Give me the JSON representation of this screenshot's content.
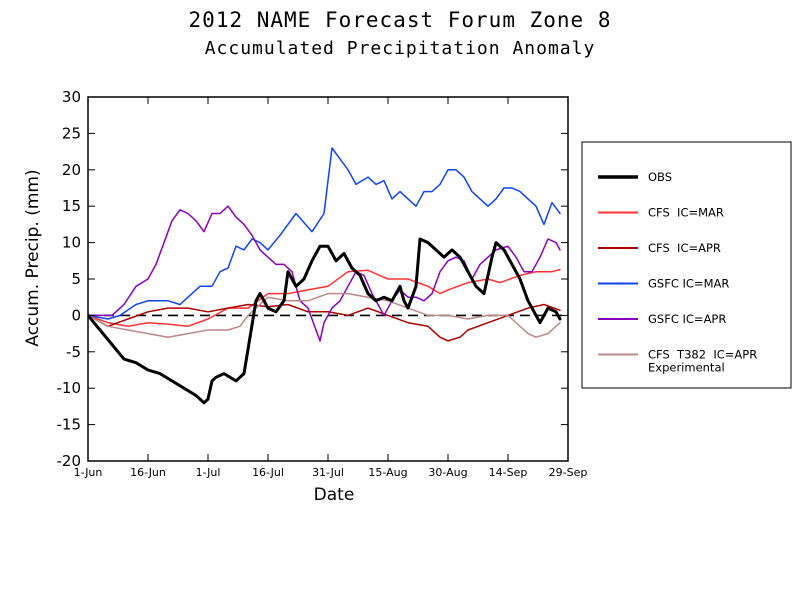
{
  "chart_data": {
    "type": "line",
    "title": "2012 NAME Forecast Forum Zone 8",
    "subtitle": "Accumulated Precipitation Anomaly",
    "xlabel": "Date",
    "ylabel": "Accum. Precip. (mm)",
    "ylim": [
      -20,
      30
    ],
    "yticks": [
      -20,
      -15,
      -10,
      -5,
      0,
      5,
      10,
      15,
      20,
      25,
      30
    ],
    "xlim": [
      0,
      120
    ],
    "x_unit": "days since 1-Jun-2012",
    "xticks": [
      {
        "day": 0,
        "label": "1-Jun"
      },
      {
        "day": 15,
        "label": "16-Jun"
      },
      {
        "day": 30,
        "label": "1-Jul"
      },
      {
        "day": 45,
        "label": "16-Jul"
      },
      {
        "day": 60,
        "label": "31-Jul"
      },
      {
        "day": 75,
        "label": "15-Aug"
      },
      {
        "day": 90,
        "label": "30-Aug"
      },
      {
        "day": 105,
        "label": "14-Sep"
      },
      {
        "day": 120,
        "label": "29-Sep"
      }
    ],
    "zero_line": {
      "style": "dashed",
      "color": "#000000"
    },
    "legend_position": "right",
    "series": [
      {
        "name": "OBS",
        "color": "#000000",
        "width": 3,
        "points": [
          [
            0,
            0
          ],
          [
            3,
            -2
          ],
          [
            6,
            -4
          ],
          [
            9,
            -6
          ],
          [
            12,
            -6.5
          ],
          [
            15,
            -7.5
          ],
          [
            18,
            -8
          ],
          [
            21,
            -9
          ],
          [
            24,
            -10
          ],
          [
            27,
            -11
          ],
          [
            29,
            -12
          ],
          [
            30,
            -11.5
          ],
          [
            31,
            -9
          ],
          [
            32,
            -8.5
          ],
          [
            34,
            -8
          ],
          [
            37,
            -9
          ],
          [
            39,
            -8
          ],
          [
            42,
            2
          ],
          [
            43,
            3
          ],
          [
            45,
            1
          ],
          [
            47,
            0.5
          ],
          [
            49,
            2
          ],
          [
            50,
            6
          ],
          [
            52,
            4
          ],
          [
            54,
            5
          ],
          [
            56,
            7.5
          ],
          [
            58,
            9.5
          ],
          [
            60,
            9.5
          ],
          [
            62,
            7.5
          ],
          [
            64,
            8.5
          ],
          [
            66,
            6.5
          ],
          [
            68,
            5.5
          ],
          [
            70,
            3
          ],
          [
            72,
            2
          ],
          [
            74,
            2.5
          ],
          [
            76,
            2
          ],
          [
            78,
            4
          ],
          [
            79,
            2
          ],
          [
            80,
            1
          ],
          [
            82,
            4
          ],
          [
            83,
            10.5
          ],
          [
            85,
            10
          ],
          [
            87,
            9
          ],
          [
            89,
            8
          ],
          [
            91,
            9
          ],
          [
            93,
            8
          ],
          [
            95,
            6
          ],
          [
            97,
            4
          ],
          [
            99,
            3
          ],
          [
            101,
            8
          ],
          [
            102,
            10
          ],
          [
            104,
            9
          ],
          [
            106,
            7
          ],
          [
            108,
            5
          ],
          [
            110,
            2
          ],
          [
            112,
            0
          ],
          [
            113,
            -1
          ],
          [
            115,
            1
          ],
          [
            117,
            0.5
          ],
          [
            118,
            -0.5
          ]
        ]
      },
      {
        "name": "CFS  IC=MAR",
        "color": "#ff3333",
        "width": 1.5,
        "points": [
          [
            0,
            0
          ],
          [
            5,
            -1
          ],
          [
            10,
            -1.5
          ],
          [
            15,
            -1
          ],
          [
            20,
            -1.2
          ],
          [
            25,
            -1.5
          ],
          [
            30,
            -0.5
          ],
          [
            35,
            1
          ],
          [
            40,
            1
          ],
          [
            45,
            3
          ],
          [
            50,
            3
          ],
          [
            55,
            3.5
          ],
          [
            60,
            4
          ],
          [
            65,
            6
          ],
          [
            70,
            6.2
          ],
          [
            75,
            5
          ],
          [
            80,
            5
          ],
          [
            85,
            4
          ],
          [
            88,
            3
          ],
          [
            90,
            3.5
          ],
          [
            95,
            4.5
          ],
          [
            100,
            5
          ],
          [
            103,
            4.5
          ],
          [
            108,
            5.5
          ],
          [
            112,
            6
          ],
          [
            116,
            6
          ],
          [
            118,
            6.3
          ]
        ]
      },
      {
        "name": "CFS  IC=APR",
        "color": "#aa0000",
        "width": 1.5,
        "points": [
          [
            0,
            0
          ],
          [
            5,
            -1.5
          ],
          [
            10,
            -0.5
          ],
          [
            15,
            0.5
          ],
          [
            20,
            1
          ],
          [
            25,
            1
          ],
          [
            30,
            0.5
          ],
          [
            35,
            1
          ],
          [
            40,
            1.5
          ],
          [
            45,
            1.2
          ],
          [
            50,
            1.5
          ],
          [
            55,
            0.5
          ],
          [
            60,
            0.5
          ],
          [
            65,
            0
          ],
          [
            70,
            1
          ],
          [
            75,
            0
          ],
          [
            80,
            -1
          ],
          [
            85,
            -1.5
          ],
          [
            88,
            -3
          ],
          [
            90,
            -3.5
          ],
          [
            93,
            -3
          ],
          [
            95,
            -2
          ],
          [
            100,
            -1
          ],
          [
            105,
            0
          ],
          [
            110,
            1
          ],
          [
            114,
            1.5
          ],
          [
            118,
            0.7
          ]
        ]
      },
      {
        "name": "GSFC IC=MAR",
        "color": "#1144ee",
        "width": 1.5,
        "points": [
          [
            0,
            0
          ],
          [
            5,
            -0.5
          ],
          [
            8,
            0
          ],
          [
            12,
            1.5
          ],
          [
            15,
            2
          ],
          [
            20,
            2
          ],
          [
            23,
            1.5
          ],
          [
            26,
            3
          ],
          [
            28,
            4
          ],
          [
            31,
            4
          ],
          [
            33,
            6
          ],
          [
            35,
            6.5
          ],
          [
            37,
            9.5
          ],
          [
            39,
            9
          ],
          [
            41,
            10.5
          ],
          [
            43,
            10
          ],
          [
            45,
            9
          ],
          [
            48,
            11
          ],
          [
            52,
            14
          ],
          [
            56,
            11.5
          ],
          [
            59,
            14
          ],
          [
            61,
            23
          ],
          [
            63,
            21.5
          ],
          [
            65,
            20
          ],
          [
            67,
            18
          ],
          [
            70,
            19
          ],
          [
            72,
            18
          ],
          [
            74,
            18.5
          ],
          [
            76,
            16
          ],
          [
            78,
            17
          ],
          [
            80,
            16
          ],
          [
            82,
            15
          ],
          [
            84,
            17
          ],
          [
            86,
            17
          ],
          [
            88,
            18
          ],
          [
            90,
            20
          ],
          [
            92,
            20
          ],
          [
            94,
            19
          ],
          [
            96,
            17
          ],
          [
            98,
            16
          ],
          [
            100,
            15
          ],
          [
            102,
            16
          ],
          [
            104,
            17.5
          ],
          [
            106,
            17.5
          ],
          [
            108,
            17
          ],
          [
            110,
            16
          ],
          [
            112,
            15
          ],
          [
            114,
            12.5
          ],
          [
            116,
            15.5
          ],
          [
            118,
            14
          ]
        ]
      },
      {
        "name": "GSFC IC=APR",
        "color": "#8800bb",
        "width": 1.5,
        "points": [
          [
            0,
            0
          ],
          [
            6,
            0
          ],
          [
            9,
            1.5
          ],
          [
            12,
            4
          ],
          [
            15,
            5
          ],
          [
            17,
            7
          ],
          [
            19,
            10
          ],
          [
            21,
            13
          ],
          [
            23,
            14.5
          ],
          [
            25,
            14
          ],
          [
            27,
            13
          ],
          [
            29,
            11.5
          ],
          [
            31,
            14
          ],
          [
            33,
            14
          ],
          [
            35,
            15
          ],
          [
            37,
            13.5
          ],
          [
            39,
            12.5
          ],
          [
            41,
            11
          ],
          [
            43,
            9
          ],
          [
            45,
            8
          ],
          [
            47,
            7
          ],
          [
            49,
            7
          ],
          [
            51,
            6
          ],
          [
            53,
            2
          ],
          [
            55,
            1
          ],
          [
            57,
            -2
          ],
          [
            58,
            -3.5
          ],
          [
            59,
            -1
          ],
          [
            61,
            1
          ],
          [
            63,
            2
          ],
          [
            65,
            4
          ],
          [
            67,
            6
          ],
          [
            69,
            5.5
          ],
          [
            71,
            3
          ],
          [
            73,
            1
          ],
          [
            74,
            0
          ],
          [
            76,
            2
          ],
          [
            78,
            3.5
          ],
          [
            80,
            2.5
          ],
          [
            82,
            2.5
          ],
          [
            84,
            2
          ],
          [
            86,
            3
          ],
          [
            88,
            6
          ],
          [
            90,
            7.5
          ],
          [
            92,
            8
          ],
          [
            94,
            7.5
          ],
          [
            96,
            5
          ],
          [
            98,
            7
          ],
          [
            100,
            8
          ],
          [
            102,
            9
          ],
          [
            105,
            9.5
          ],
          [
            107,
            8
          ],
          [
            109,
            6
          ],
          [
            111,
            6
          ],
          [
            113,
            8
          ],
          [
            115,
            10.5
          ],
          [
            117,
            10
          ],
          [
            118,
            9
          ]
        ]
      },
      {
        "name": "CFS  T382  IC=APR",
        "name2": "Experimental",
        "color": "#bb8888",
        "width": 1.5,
        "points": [
          [
            0,
            0
          ],
          [
            5,
            -1.5
          ],
          [
            10,
            -2
          ],
          [
            15,
            -2.5
          ],
          [
            20,
            -3
          ],
          [
            25,
            -2.5
          ],
          [
            30,
            -2
          ],
          [
            35,
            -2
          ],
          [
            38,
            -1.5
          ],
          [
            40,
            0
          ],
          [
            45,
            2.5
          ],
          [
            50,
            2
          ],
          [
            55,
            2
          ],
          [
            60,
            3
          ],
          [
            65,
            3
          ],
          [
            70,
            2.5
          ],
          [
            75,
            2
          ],
          [
            80,
            1
          ],
          [
            85,
            0
          ],
          [
            90,
            0
          ],
          [
            95,
            -0.5
          ],
          [
            100,
            0
          ],
          [
            105,
            0
          ],
          [
            110,
            -2.5
          ],
          [
            112,
            -3
          ],
          [
            115,
            -2.5
          ],
          [
            118,
            -1
          ]
        ]
      }
    ]
  }
}
